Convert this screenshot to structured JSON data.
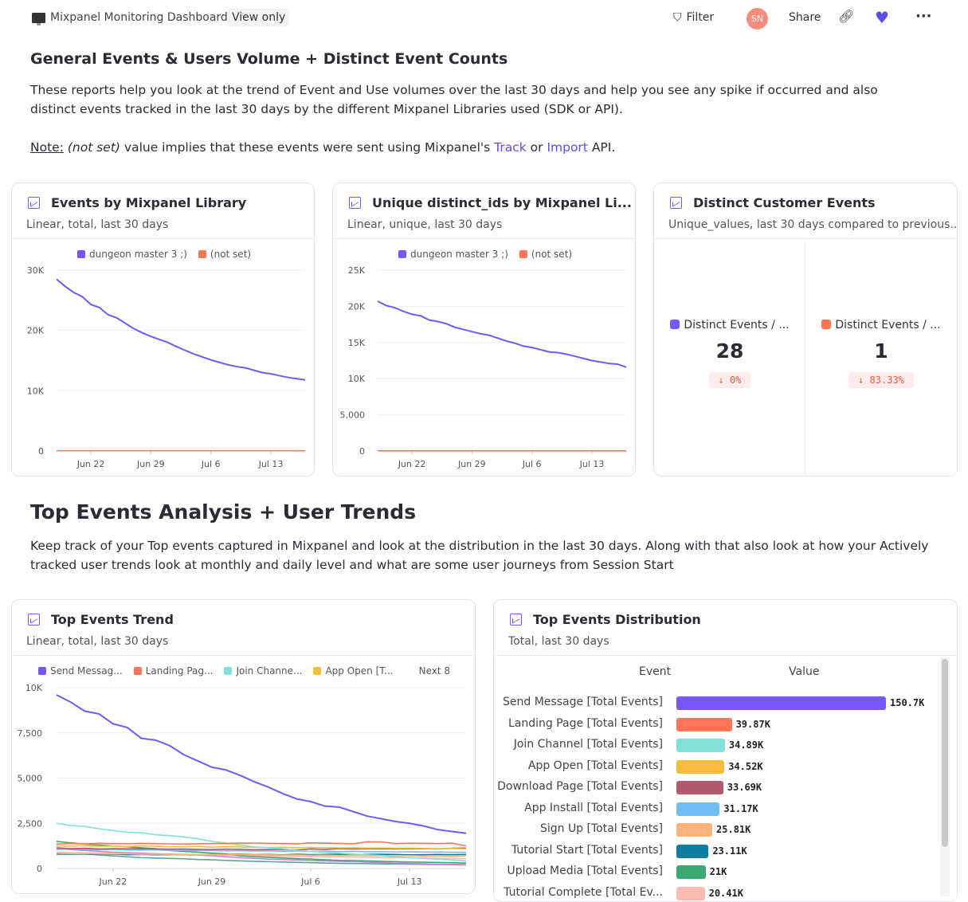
{
  "header": {
    "title": "Mixpanel Monitoring Dashboard",
    "view_only": "View only",
    "filter": "Filter",
    "avatar": "SN",
    "share": "Share",
    "icons": [
      "monitor-icon",
      "filter-icon",
      "link-icon",
      "heart-icon",
      "more-icon"
    ],
    "heart_color": "#5b4fe8"
  },
  "section1": {
    "title": "General Events & Users Volume + Distinct Event Counts",
    "desc": "These reports help you look at the trend of Event and Use volumes over the last 30 days and help you see any spike if occurred and also distinct events tracked in the last 30 days by the different Mixpanel Libraries used (SDK or API).",
    "note_label": "Note:",
    "note_italic": "(not set)",
    "note_text1": " value implies that these events were sent using Mixpanel's ",
    "track": "Track",
    "or": " or ",
    "import": "Import",
    "api": " API."
  },
  "section2": {
    "title": "Top Events Analysis + User Trends",
    "desc": "Keep track of your Top events captured in Mixpanel and look at the distribution in the last 30 days. Along with that also look at how your Actively tracked user trends look at monthly and daily level and what are some user journeys from Session Start"
  },
  "cards": {
    "events_lib": {
      "title": "Events by Mixpanel Library",
      "subtitle": "Linear, total, last 30 days"
    },
    "unique_lib": {
      "title": "Unique distinct_ids by Mixpanel Li...",
      "subtitle": "Linear, unique, last 30 days"
    },
    "distinct": {
      "title": "Distinct Customer Events",
      "subtitle": "Unique_values, last 30 days compared to previous...",
      "metrics": [
        {
          "label": "Distinct Events / ...",
          "value": "28",
          "delta": "↓ 0%",
          "color": "#7856ff"
        },
        {
          "label": "Distinct Events / ...",
          "value": "1",
          "delta": "↓ 83.33%",
          "color": "#ff7557"
        }
      ]
    },
    "top_trend": {
      "title": "Top Events Trend",
      "subtitle": "Linear, total, last 30 days",
      "next": "Next 8"
    },
    "top_dist": {
      "title": "Top Events Distribution",
      "subtitle": "Total, last 30 days"
    }
  },
  "chart_data": [
    {
      "type": "line",
      "ylim": [
        0,
        30000
      ],
      "yticks": [
        "0",
        "10K",
        "20K",
        "30K"
      ],
      "ytick_values": [
        0,
        10000,
        20000,
        30000
      ],
      "xticks": [
        "Jun 22",
        "Jun 29",
        "Jul 6",
        "Jul 13"
      ],
      "xtick_index": [
        4,
        11,
        18,
        25
      ],
      "legend": "top",
      "series": [
        {
          "name": "dungeon master 3 ;)",
          "color": "#7856ff",
          "values": [
            28500,
            27300,
            26300,
            25600,
            24300,
            23800,
            22600,
            22100,
            21200,
            20300,
            19600,
            19000,
            18500,
            18000,
            17300,
            16700,
            16100,
            15600,
            15100,
            14700,
            14300,
            14000,
            13800,
            13400,
            13000,
            12800,
            12500,
            12200,
            12000,
            11800
          ]
        },
        {
          "name": "(not set)",
          "color": "#ff7557",
          "values": [
            50,
            50,
            50,
            50,
            50,
            50,
            50,
            50,
            50,
            50,
            50,
            50,
            50,
            50,
            50,
            50,
            50,
            50,
            50,
            50,
            50,
            50,
            50,
            50,
            50,
            50,
            50,
            50,
            50,
            50
          ]
        }
      ]
    },
    {
      "type": "line",
      "ylim": [
        0,
        25000
      ],
      "yticks": [
        "0",
        "5,000",
        "10K",
        "15K",
        "20K",
        "25K"
      ],
      "ytick_values": [
        0,
        5000,
        10000,
        15000,
        20000,
        25000
      ],
      "xticks": [
        "Jun 22",
        "Jun 29",
        "Jul 6",
        "Jul 13"
      ],
      "xtick_index": [
        4,
        11,
        18,
        25
      ],
      "legend": "top",
      "series": [
        {
          "name": "dungeon master 3 ;)",
          "color": "#7856ff",
          "values": [
            20700,
            20100,
            19800,
            19300,
            18900,
            18700,
            18100,
            17900,
            17600,
            17100,
            16800,
            16500,
            16200,
            16000,
            15600,
            15200,
            14900,
            14500,
            14300,
            14000,
            13700,
            13600,
            13400,
            13100,
            12800,
            12500,
            12300,
            12100,
            12000,
            11600
          ]
        },
        {
          "name": "(not set)",
          "color": "#ff7557",
          "values": [
            20,
            20,
            20,
            20,
            20,
            20,
            20,
            20,
            20,
            20,
            20,
            20,
            20,
            20,
            20,
            20,
            20,
            20,
            20,
            20,
            20,
            20,
            20,
            20,
            20,
            20,
            20,
            20,
            20,
            20
          ]
        }
      ]
    },
    {
      "type": "line",
      "ylim": [
        0,
        10000
      ],
      "yticks": [
        "0",
        "2,500",
        "5,000",
        "7,500",
        "10K"
      ],
      "ytick_values": [
        0,
        2500,
        5000,
        7500,
        10000
      ],
      "xticks": [
        "Jun 22",
        "Jun 29",
        "Jul 6",
        "Jul 13"
      ],
      "xtick_index": [
        4,
        11,
        18,
        25
      ],
      "legend": "top",
      "series": [
        {
          "name": "Send Messag...",
          "color": "#7856ff",
          "values": [
            9600,
            9200,
            8700,
            8550,
            8000,
            7800,
            7200,
            7100,
            6800,
            6300,
            5950,
            5600,
            5450,
            5150,
            4800,
            4500,
            4150,
            3850,
            3700,
            3450,
            3400,
            3150,
            2900,
            2750,
            2600,
            2500,
            2350,
            2150,
            2050,
            1950
          ]
        },
        {
          "name": "Landing Pag...",
          "color": "#ff7557",
          "values": [
            1350,
            1380,
            1360,
            1400,
            1380,
            1370,
            1390,
            1380,
            1360,
            1350,
            1370,
            1380,
            1390,
            1400,
            1410,
            1390,
            1380,
            1360,
            1420,
            1400,
            1390,
            1370,
            1480,
            1470,
            1380,
            1400,
            1390,
            1380,
            1400,
            1250
          ]
        },
        {
          "name": "Join Channe...",
          "color": "#80e1d9",
          "values": [
            2500,
            2380,
            2330,
            2200,
            2100,
            2000,
            1980,
            1870,
            1820,
            1750,
            1650,
            1500,
            1400,
            1300,
            1200,
            1150,
            1100,
            1000,
            950,
            900,
            850,
            800,
            760,
            720,
            650,
            600,
            560,
            520,
            480,
            420
          ]
        },
        {
          "name": "App Open [T...",
          "color": "#f8bc3b",
          "values": [
            1250,
            1240,
            1260,
            1230,
            1240,
            1220,
            1250,
            1230,
            1200,
            1210,
            1220,
            1180,
            1200,
            1190,
            1170,
            1160,
            1180,
            1150,
            1170,
            1160,
            1140,
            1150,
            1130,
            1140,
            1120,
            1130,
            1110,
            1100,
            1110,
            1080
          ]
        },
        {
          "color": "#b2596e",
          "values": [
            1150,
            1100,
            1120,
            1080,
            1100,
            1090,
            1100,
            1080,
            1070,
            1080,
            1060,
            1050,
            1070,
            1060,
            1040,
            1050,
            1060,
            1030,
            1080,
            1060,
            1100,
            1080,
            1090,
            1100,
            1080,
            1090,
            1100,
            1080,
            1120,
            1130
          ]
        },
        {
          "color": "#72bef4",
          "values": [
            1050,
            1080,
            1060,
            1040,
            1060,
            1030,
            1020,
            1040,
            1000,
            1010,
            990,
            1000,
            980,
            990,
            970,
            980,
            960,
            970,
            950,
            960,
            940,
            950,
            930,
            940,
            920,
            930,
            910,
            920,
            900,
            900
          ]
        },
        {
          "color": "#ffb27a",
          "values": [
            850,
            820,
            830,
            810,
            800,
            820,
            790,
            800,
            780,
            790,
            770,
            780,
            760,
            770,
            750,
            760,
            740,
            750,
            730,
            740,
            720,
            730,
            710,
            720,
            700,
            710,
            690,
            700,
            680,
            690
          ]
        },
        {
          "color": "#0f7ea0",
          "values": [
            800,
            790,
            800,
            780,
            790,
            770,
            780,
            760,
            770,
            780,
            760,
            770,
            780,
            790,
            770,
            780,
            760,
            790,
            770,
            780,
            790,
            770,
            780,
            790,
            780,
            760,
            770,
            780,
            770,
            780
          ]
        },
        {
          "color": "#3ba974",
          "values": [
            1500,
            1420,
            1350,
            1300,
            1250,
            1200,
            1150,
            1100,
            1000,
            950,
            900,
            850,
            800,
            700,
            650,
            620,
            580,
            550,
            520,
            480,
            450,
            440,
            420,
            400,
            380,
            360,
            350,
            340,
            320,
            300
          ]
        },
        {
          "color": "#febbb2",
          "values": [
            900,
            880,
            860,
            850,
            840,
            830,
            800,
            790,
            780,
            760,
            750,
            740,
            730,
            720,
            700,
            690,
            680,
            670,
            660,
            650,
            640,
            630,
            620,
            610,
            600,
            590,
            580,
            570,
            560,
            550
          ]
        },
        {
          "color": "#ca80dc",
          "values": [
            1100,
            1050,
            1000,
            950,
            900,
            880,
            850,
            820,
            800,
            780,
            750,
            700,
            650,
            600,
            560,
            520,
            500,
            470,
            440,
            420,
            400,
            380,
            350,
            330,
            300,
            280,
            260,
            240,
            230,
            220
          ]
        },
        {
          "color": "#5ba39b",
          "values": [
            900,
            850,
            800,
            750,
            700,
            650,
            600,
            580,
            560,
            540,
            500,
            480,
            450,
            420,
            400,
            380,
            360,
            340,
            320,
            300,
            290,
            280,
            270,
            260,
            250,
            240,
            230,
            220,
            210,
            200
          ]
        }
      ]
    },
    {
      "type": "bar",
      "orientation": "horizontal",
      "columns": [
        "Event",
        "Value"
      ],
      "categories": [
        "Send Message [Total Events]",
        "Landing Page [Total Events]",
        "Join Channel [Total Events]",
        "App Open [Total Events]",
        "Download Page [Total Events]",
        "App Install [Total Events]",
        "Sign Up [Total Events]",
        "Tutorial Start [Total Events]",
        "Upload Media [Total Events]",
        "Tutorial Complete [Total Ev..."
      ],
      "values": [
        150700,
        39870,
        34890,
        34520,
        33690,
        31170,
        25810,
        23110,
        21000,
        20410
      ],
      "labels": [
        "150.7K",
        "39.87K",
        "34.89K",
        "34.52K",
        "33.69K",
        "31.17K",
        "25.81K",
        "23.11K",
        "21K",
        "20.41K"
      ],
      "colors": [
        "#7856ff",
        "#ff7557",
        "#80e1d9",
        "#f8bc3b",
        "#b2596e",
        "#72bef4",
        "#ffb27a",
        "#0f7ea0",
        "#3ba974",
        "#febbb2"
      ]
    }
  ]
}
